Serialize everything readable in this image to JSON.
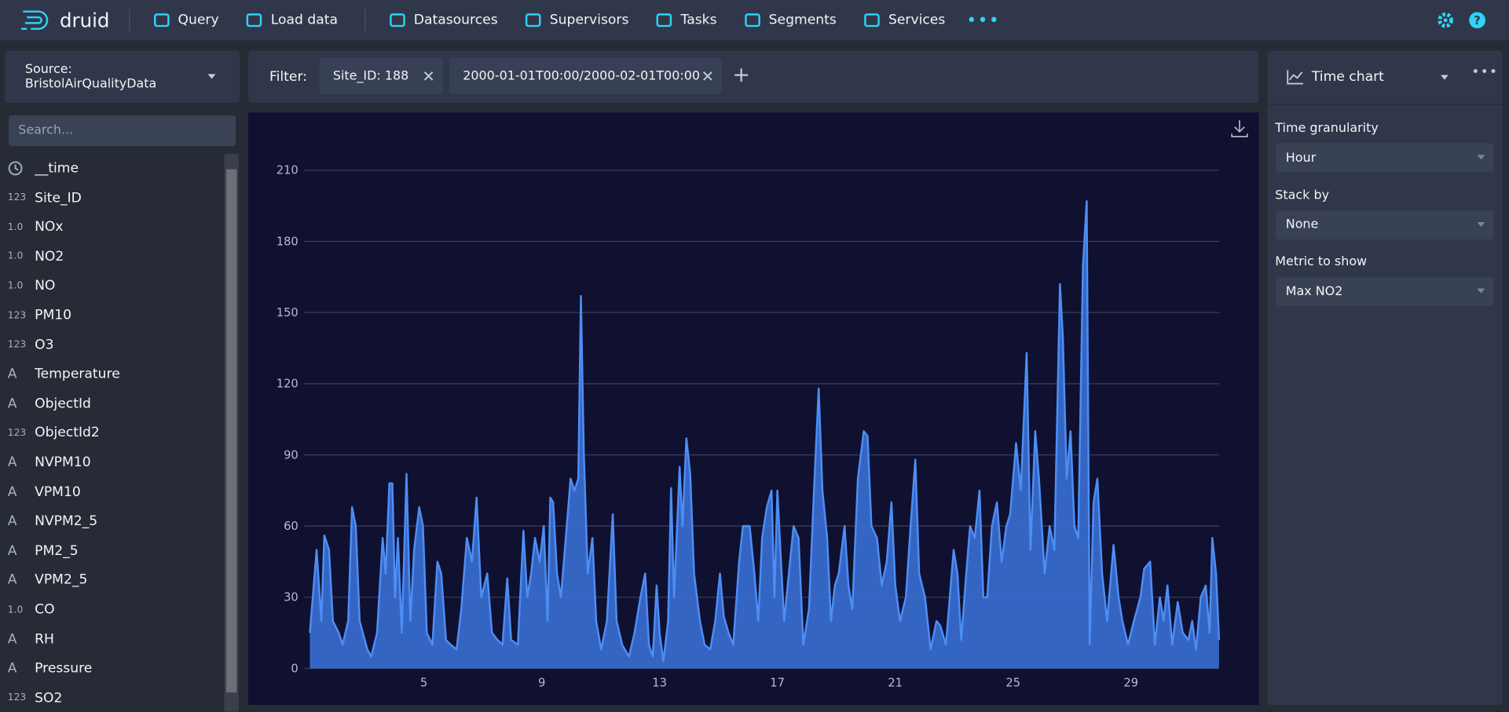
{
  "header": {
    "brand": "druid",
    "nav": [
      "Query",
      "Load data",
      "Datasources",
      "Supervisors",
      "Tasks",
      "Segments",
      "Services"
    ]
  },
  "sidebar": {
    "source_label": "Source:",
    "source": "BristolAirQualityData",
    "search_placeholder": "Search...",
    "columns": [
      {
        "name": "__time"
      },
      {
        "type": "123",
        "name": "Site_ID"
      },
      {
        "type": "1.0",
        "name": "NOx"
      },
      {
        "type": "1.0",
        "name": "NO2"
      },
      {
        "type": "1.0",
        "name": "NO"
      },
      {
        "type": "123",
        "name": "PM10"
      },
      {
        "type": "123",
        "name": "O3"
      },
      {
        "type": "A",
        "name": "Temperature"
      },
      {
        "type": "A",
        "name": "ObjectId"
      },
      {
        "type": "123",
        "name": "ObjectId2"
      },
      {
        "type": "A",
        "name": "NVPM10"
      },
      {
        "type": "A",
        "name": "VPM10"
      },
      {
        "type": "A",
        "name": "NVPM2_5"
      },
      {
        "type": "A",
        "name": "PM2_5"
      },
      {
        "type": "A",
        "name": "VPM2_5"
      },
      {
        "type": "1.0",
        "name": "CO"
      },
      {
        "type": "A",
        "name": "RH"
      },
      {
        "type": "A",
        "name": "Pressure"
      },
      {
        "type": "123",
        "name": "SO2"
      }
    ]
  },
  "filter": {
    "label": "Filter:",
    "chips": [
      "Site_ID: 188",
      "2000-01-01T00:00/2000-02-01T00:00"
    ]
  },
  "panel": {
    "title": "Time chart",
    "controls": [
      {
        "label": "Time granularity",
        "value": "Hour"
      },
      {
        "label": "Stack by",
        "value": "None"
      },
      {
        "label": "Metric to show",
        "value": "Max NO2"
      }
    ]
  },
  "chart_data": {
    "type": "area",
    "color": "#3a6fd4",
    "line_color": "#4d8ef5",
    "grid": true,
    "xlim": [
      1,
      32
    ],
    "xticks": [
      5,
      9,
      13,
      17,
      21,
      25,
      29
    ],
    "ylim": [
      0,
      210
    ],
    "yticks": [
      0,
      30,
      60,
      90,
      120,
      150,
      180,
      210
    ],
    "x": [
      1.13,
      1.36,
      1.52,
      1.62,
      1.78,
      1.91,
      2.11,
      2.24,
      2.43,
      2.56,
      2.69,
      2.82,
      3.08,
      3.21,
      3.41,
      3.6,
      3.7,
      3.83,
      3.93,
      4.02,
      4.12,
      4.25,
      4.41,
      4.54,
      4.67,
      4.84,
      4.97,
      5.1,
      5.29,
      5.46,
      5.59,
      5.75,
      5.91,
      6.11,
      6.27,
      6.46,
      6.63,
      6.79,
      6.95,
      7.15,
      7.31,
      7.5,
      7.67,
      7.83,
      7.96,
      8.19,
      8.38,
      8.51,
      8.64,
      8.77,
      8.93,
      9.07,
      9.2,
      9.29,
      9.39,
      9.52,
      9.65,
      9.85,
      9.98,
      10.11,
      10.24,
      10.33,
      10.43,
      10.56,
      10.72,
      10.85,
      11.02,
      11.21,
      11.41,
      11.54,
      11.73,
      11.96,
      12.15,
      12.35,
      12.51,
      12.64,
      12.77,
      12.9,
      13.0,
      13.13,
      13.29,
      13.39,
      13.49,
      13.68,
      13.78,
      13.91,
      14.04,
      14.17,
      14.37,
      14.53,
      14.72,
      14.89,
      15.05,
      15.18,
      15.34,
      15.5,
      15.7,
      15.83,
      16.06,
      16.22,
      16.35,
      16.48,
      16.64,
      16.8,
      16.9,
      17.0,
      17.1,
      17.23,
      17.39,
      17.55,
      17.72,
      17.88,
      18.07,
      18.24,
      18.4,
      18.53,
      18.69,
      18.82,
      18.95,
      19.08,
      19.28,
      19.41,
      19.54,
      19.73,
      19.93,
      20.06,
      20.19,
      20.38,
      20.54,
      20.71,
      20.87,
      21.0,
      21.16,
      21.36,
      21.52,
      21.68,
      21.81,
      22.01,
      22.2,
      22.4,
      22.53,
      22.72,
      22.85,
      22.98,
      23.11,
      23.24,
      23.41,
      23.54,
      23.7,
      23.86,
      23.99,
      24.12,
      24.28,
      24.45,
      24.61,
      24.77,
      24.9,
      25.1,
      25.26,
      25.46,
      25.59,
      25.75,
      25.88,
      26.07,
      26.24,
      26.4,
      26.59,
      26.69,
      26.82,
      26.95,
      27.08,
      27.21,
      27.37,
      27.5,
      27.6,
      27.73,
      27.86,
      28.02,
      28.19,
      28.41,
      28.58,
      28.71,
      28.9,
      29.1,
      29.32,
      29.45,
      29.65,
      29.81,
      29.98,
      30.11,
      30.24,
      30.4,
      30.59,
      30.76,
      30.95,
      31.08,
      31.21,
      31.37,
      31.54,
      31.67,
      31.76,
      31.89,
      31.99
    ],
    "values": [
      15,
      50,
      20,
      56,
      50,
      20,
      15,
      10,
      20,
      68,
      60,
      20,
      8,
      5,
      15,
      55,
      40,
      78,
      78,
      30,
      55,
      15,
      82,
      20,
      50,
      68,
      60,
      15,
      10,
      45,
      40,
      12,
      10,
      8,
      25,
      55,
      45,
      72,
      30,
      40,
      15,
      12,
      10,
      38,
      12,
      10,
      58,
      30,
      40,
      55,
      45,
      60,
      20,
      72,
      70,
      40,
      30,
      60,
      80,
      75,
      80,
      157,
      90,
      40,
      55,
      20,
      8,
      20,
      65,
      20,
      10,
      5,
      15,
      30,
      40,
      10,
      5,
      35,
      15,
      3,
      20,
      76,
      30,
      85,
      60,
      97,
      82,
      40,
      20,
      10,
      8,
      20,
      40,
      22,
      15,
      10,
      45,
      60,
      60,
      40,
      20,
      55,
      68,
      75,
      30,
      75,
      50,
      20,
      40,
      60,
      55,
      10,
      25,
      75,
      118,
      75,
      55,
      20,
      35,
      40,
      60,
      35,
      25,
      80,
      100,
      98,
      60,
      55,
      35,
      45,
      70,
      35,
      20,
      30,
      60,
      88,
      40,
      30,
      8,
      20,
      18,
      10,
      30,
      50,
      40,
      12,
      40,
      60,
      55,
      75,
      30,
      30,
      60,
      70,
      45,
      60,
      65,
      95,
      75,
      133,
      50,
      100,
      80,
      40,
      60,
      50,
      162,
      140,
      80,
      100,
      60,
      55,
      170,
      197,
      10,
      70,
      80,
      40,
      20,
      52,
      30,
      20,
      10,
      20,
      30,
      42,
      45,
      10,
      30,
      20,
      35,
      10,
      28,
      15,
      12,
      20,
      8,
      30,
      35,
      15,
      55,
      40,
      12
    ]
  }
}
